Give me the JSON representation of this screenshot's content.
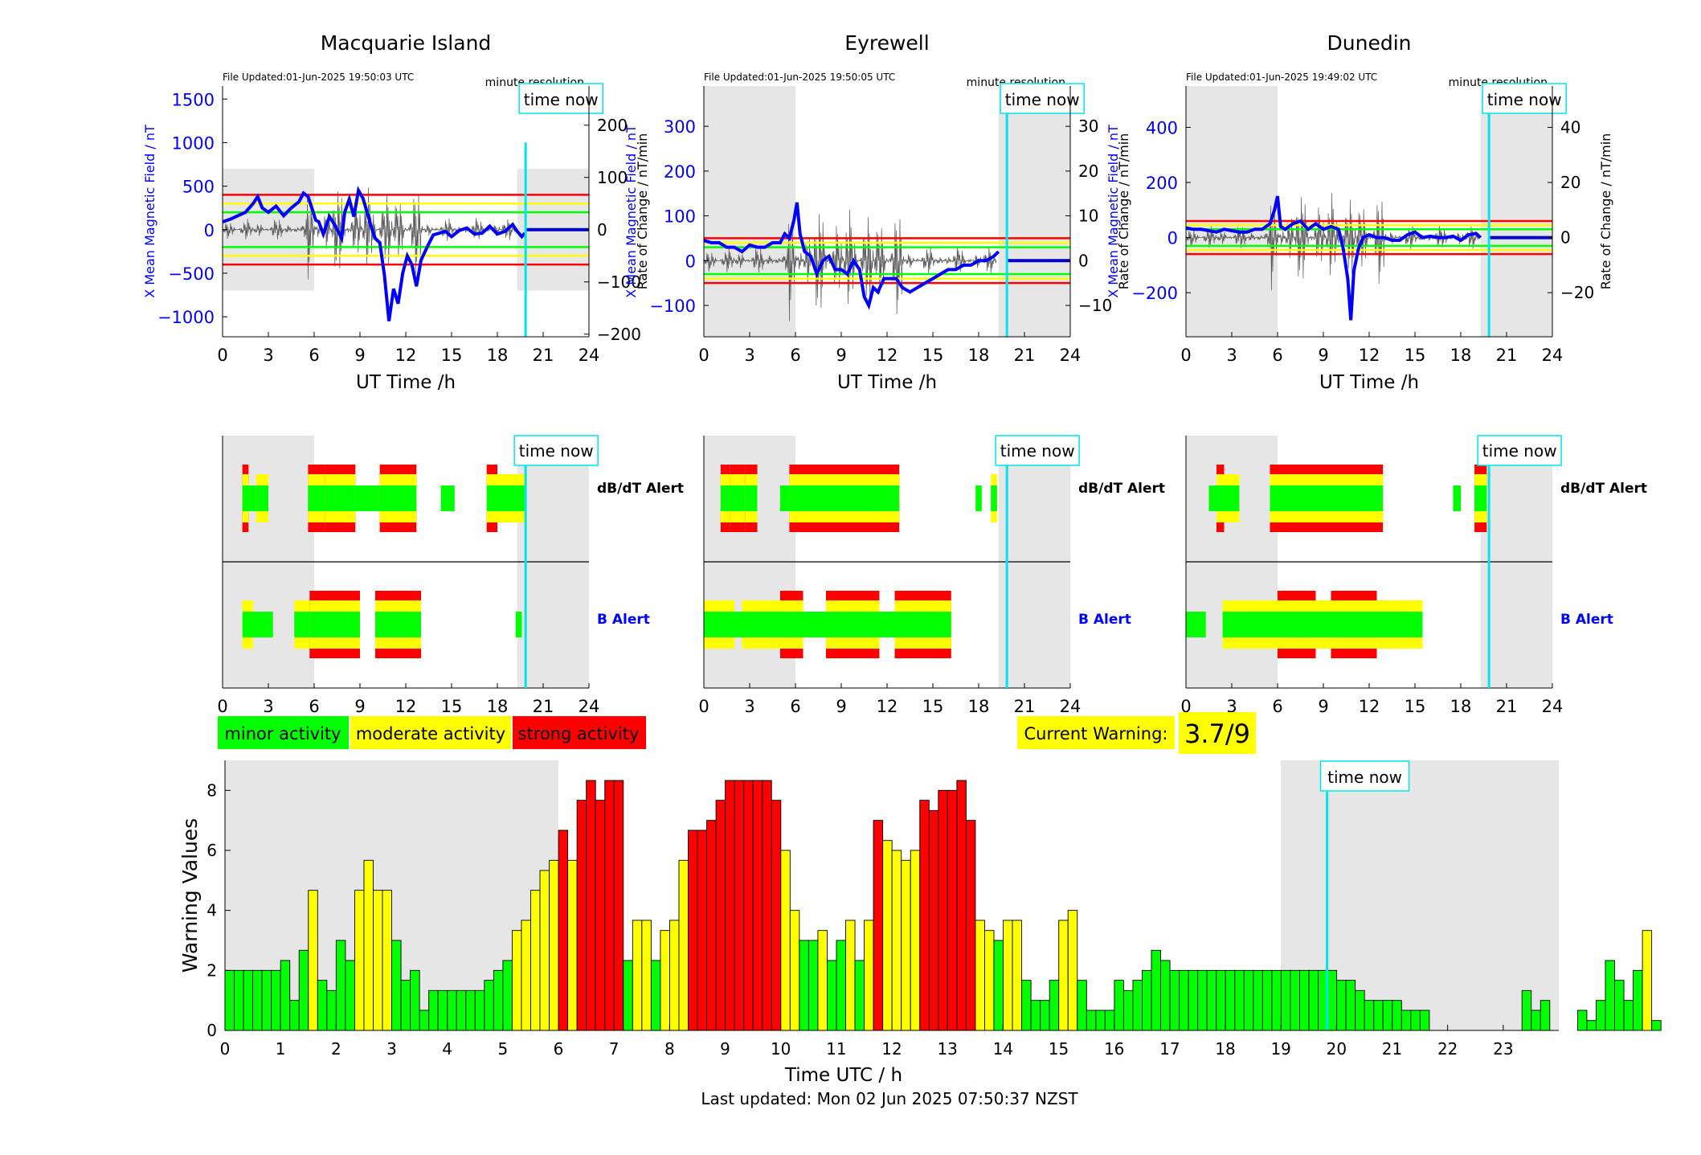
{
  "stations": [
    {
      "name": "Macquarie Island",
      "file_updated": "File Updated:01-Jun-2025 19:50:03 UTC",
      "resolution": "minute resolution",
      "ylabel_left": "X Mean Magnetic Field / nT",
      "ylabel_right": "Rate of Change / nT/min",
      "yticks_left": [
        -1000,
        -500,
        0,
        500,
        1000,
        1500
      ],
      "ylim_left": [
        -1230,
        1650
      ],
      "yticks_right": [
        -200,
        -100,
        0,
        100,
        200
      ],
      "ylim_right": [
        -205,
        275
      ],
      "x_left_curve": [
        0,
        0.5,
        1,
        1.5,
        2,
        2.3,
        2.6,
        3,
        3.5,
        4,
        4.5,
        5,
        5.3,
        5.6,
        5.9,
        6.1,
        6.3,
        6.6,
        7,
        7.4,
        7.8,
        8,
        8.3,
        8.6,
        8.9,
        9.2,
        9.5,
        9.8,
        10,
        10.3,
        10.6,
        10.9,
        11.2,
        11.5,
        11.8,
        12.1,
        12.4,
        12.7,
        13,
        13.4,
        13.8,
        14.2,
        14.6,
        15,
        15.5,
        16,
        16.5,
        17,
        17.5,
        18,
        18.5,
        19,
        19.3,
        19.6,
        19.8
      ],
      "y_left_curve": [
        90,
        120,
        160,
        200,
        300,
        380,
        250,
        200,
        270,
        160,
        250,
        320,
        420,
        380,
        220,
        110,
        90,
        -50,
        150,
        40,
        -100,
        200,
        350,
        150,
        450,
        360,
        180,
        0,
        -100,
        -150,
        -520,
        -1050,
        -680,
        -850,
        -500,
        -300,
        -400,
        -650,
        -350,
        -200,
        -60,
        -40,
        -20,
        -80,
        -10,
        20,
        -50,
        -40,
        40,
        -50,
        -20,
        60,
        -20,
        -80,
        -40
      ],
      "thresholds": [
        {
          "color": "#ff0000",
          "value": 400
        },
        {
          "color": "#ffff00",
          "value": 300
        },
        {
          "color": "#00ff00",
          "value": 200
        }
      ],
      "shade": [
        [
          0,
          6
        ],
        [
          19.3,
          24
        ]
      ],
      "time_now": 19.85,
      "alert_title_dbdt": "dB/dT Alert",
      "alert_title_b": "B Alert",
      "dbdt_blocks": [
        [
          1.3,
          1.7,
          3
        ],
        [
          1.7,
          2.2,
          1
        ],
        [
          2.2,
          3,
          2
        ],
        [
          5.6,
          6.7,
          3
        ],
        [
          6.7,
          8.7,
          3
        ],
        [
          8.7,
          10.3,
          1
        ],
        [
          10.3,
          12.7,
          3
        ],
        [
          14.3,
          15.2,
          1
        ],
        [
          17.3,
          18,
          3
        ],
        [
          18,
          19.8,
          2
        ]
      ],
      "b_blocks": [
        [
          1.3,
          2,
          2
        ],
        [
          2,
          3.3,
          1
        ],
        [
          4.7,
          5.7,
          2
        ],
        [
          5.7,
          7,
          3
        ],
        [
          7,
          9,
          3
        ],
        [
          10,
          13,
          3
        ],
        [
          19.2,
          19.6,
          1
        ]
      ]
    },
    {
      "name": "Eyrewell",
      "file_updated": "File Updated:01-Jun-2025 19:50:05 UTC",
      "resolution": "minute resolution",
      "ylabel_left": "X Mean Magnetic Field / nT",
      "ylabel_right": "Rate of Change / nT/min",
      "yticks_left": [
        -100,
        0,
        100,
        200,
        300
      ],
      "ylim_left": [
        -170,
        390
      ],
      "yticks_right": [
        -10,
        0,
        10,
        20,
        30
      ],
      "ylim_right": [
        -17,
        39
      ],
      "x_left_curve": [
        0,
        0.5,
        1,
        1.5,
        2,
        2.5,
        3,
        3.5,
        4,
        4.5,
        5,
        5.3,
        5.6,
        5.9,
        6.1,
        6.3,
        6.6,
        7,
        7.4,
        7.8,
        8.2,
        8.6,
        9,
        9.4,
        9.8,
        10.2,
        10.5,
        10.8,
        11.1,
        11.4,
        11.8,
        12.2,
        12.6,
        13,
        13.5,
        14,
        14.5,
        15,
        15.5,
        16,
        16.5,
        17,
        17.5,
        18,
        18.5,
        19,
        19.3
      ],
      "y_left_curve": [
        45,
        40,
        40,
        30,
        30,
        20,
        35,
        30,
        30,
        40,
        40,
        60,
        50,
        90,
        130,
        60,
        20,
        10,
        -30,
        0,
        10,
        -20,
        -20,
        -30,
        0,
        -20,
        -80,
        -100,
        -60,
        -70,
        -40,
        -40,
        -40,
        -60,
        -70,
        -60,
        -50,
        -40,
        -30,
        -20,
        -20,
        -10,
        -10,
        0,
        0,
        10,
        20
      ],
      "thresholds": [
        {
          "color": "#ff0000",
          "value": 50
        },
        {
          "color": "#ffff00",
          "value": 40
        },
        {
          "color": "#00ff00",
          "value": 30
        }
      ],
      "shade": [
        [
          0,
          6
        ],
        [
          19.3,
          24
        ]
      ],
      "time_now": 19.85,
      "alert_title_dbdt": "dB/dT Alert",
      "alert_title_b": "B Alert",
      "dbdt_blocks": [
        [
          1.1,
          1.7,
          3
        ],
        [
          1.7,
          2.7,
          3
        ],
        [
          2.7,
          3.5,
          3
        ],
        [
          5,
          5.6,
          1
        ],
        [
          5.6,
          8,
          3
        ],
        [
          8,
          12.8,
          3
        ],
        [
          17.8,
          18.2,
          1
        ],
        [
          18.8,
          19.2,
          2
        ]
      ],
      "b_blocks": [
        [
          0,
          2,
          2
        ],
        [
          2,
          2.5,
          1
        ],
        [
          2.5,
          5.6,
          2
        ],
        [
          5,
          6.5,
          3
        ],
        [
          6.5,
          8,
          1
        ],
        [
          8,
          11.5,
          3
        ],
        [
          11.5,
          12.5,
          1
        ],
        [
          12.5,
          16.2,
          3
        ]
      ]
    },
    {
      "name": "Dunedin",
      "file_updated": "File Updated:01-Jun-2025 19:49:02 UTC",
      "resolution": "minute resolution",
      "ylabel_left": "X Mean Magnetic Field / nT",
      "ylabel_right": "Rate of Change / nT/min",
      "yticks_left": [
        -200,
        0,
        200,
        400
      ],
      "ylim_left": [
        -360,
        550
      ],
      "yticks_right": [
        -20,
        0,
        20,
        40
      ],
      "ylim_right": [
        -36,
        55
      ],
      "x_left_curve": [
        0,
        0.5,
        1,
        1.5,
        2,
        2.5,
        3,
        3.5,
        4,
        4.5,
        5,
        5.5,
        5.8,
        6,
        6.2,
        6.5,
        7,
        7.5,
        8,
        8.5,
        9,
        9.5,
        10,
        10.3,
        10.6,
        10.8,
        11,
        11.3,
        11.6,
        12,
        12.5,
        13,
        13.5,
        14,
        14.5,
        15,
        15.5,
        16,
        16.5,
        17,
        17.5,
        18,
        18.5,
        19,
        19.3
      ],
      "y_left_curve": [
        35,
        30,
        30,
        25,
        20,
        30,
        25,
        20,
        20,
        30,
        30,
        50,
        100,
        150,
        40,
        30,
        50,
        60,
        30,
        50,
        30,
        40,
        30,
        -40,
        -150,
        -300,
        -120,
        -40,
        0,
        10,
        0,
        0,
        -10,
        -10,
        10,
        20,
        0,
        5,
        0,
        0,
        5,
        -10,
        10,
        15,
        0
      ],
      "thresholds": [
        {
          "color": "#ff0000",
          "value": 60
        },
        {
          "color": "#ffff00",
          "value": 45
        },
        {
          "color": "#00ff00",
          "value": 30
        }
      ],
      "shade": [
        [
          0,
          6
        ],
        [
          19.3,
          24
        ]
      ],
      "time_now": 19.85,
      "alert_title_dbdt": "dB/dT Alert",
      "alert_title_b": "B Alert",
      "dbdt_blocks": [
        [
          1.5,
          2,
          1
        ],
        [
          2,
          2.5,
          3
        ],
        [
          2.5,
          3.5,
          2
        ],
        [
          5.5,
          7.5,
          3
        ],
        [
          7.5,
          10,
          3
        ],
        [
          10,
          12.9,
          3
        ],
        [
          17.5,
          18,
          1
        ],
        [
          18.9,
          19.7,
          3
        ]
      ],
      "b_blocks": [
        [
          0,
          1.3,
          1
        ],
        [
          2.4,
          6,
          2
        ],
        [
          6,
          7,
          3
        ],
        [
          7,
          8.5,
          3
        ],
        [
          8.5,
          9.5,
          2
        ],
        [
          9.5,
          11,
          3
        ],
        [
          11,
          12.5,
          3
        ],
        [
          12.5,
          15.5,
          2
        ]
      ]
    }
  ],
  "panel_labels": {
    "time_now": "time now",
    "xlabel": "UT Time /h",
    "xticks": [
      0,
      3,
      6,
      9,
      12,
      15,
      18,
      21,
      24
    ]
  },
  "legend": {
    "minor": "minor activity",
    "moderate": "moderate activity",
    "strong": "strong activity",
    "minor_color": "#00ff00",
    "moderate_color": "#ffff00",
    "strong_color": "#ff0000"
  },
  "current_warning": {
    "label": "Current Warning:",
    "value": "3.7/9"
  },
  "chart_data": {
    "type": "bar",
    "xlabel": "Time UTC / h",
    "ylabel": "Warning Values",
    "xlim": [
      0,
      24
    ],
    "ylim": [
      0,
      9
    ],
    "xticks": [
      0,
      1,
      2,
      3,
      4,
      5,
      6,
      7,
      8,
      9,
      10,
      11,
      12,
      13,
      14,
      15,
      16,
      17,
      18,
      19,
      20,
      21,
      22,
      23
    ],
    "yticks": [
      0,
      2,
      4,
      6,
      8
    ],
    "bin_hours": 0.1667,
    "shade": [
      [
        0,
        6
      ],
      [
        19,
        24
      ]
    ],
    "time_now": 19.83,
    "time_now_label": "time now",
    "values": [
      2,
      2,
      2,
      2,
      2,
      2,
      2.33,
      1,
      2.67,
      4.67,
      1.67,
      1.33,
      3,
      2.33,
      4.67,
      5.67,
      4.67,
      4.67,
      3,
      1.67,
      2,
      0.67,
      1.33,
      1.33,
      1.33,
      1.33,
      1.33,
      1.33,
      1.67,
      2,
      2.33,
      3.33,
      3.67,
      4.67,
      5.33,
      5.67,
      6.67,
      5.67,
      7.67,
      8.33,
      7.67,
      8.33,
      8.33,
      2.33,
      3.67,
      3.67,
      2.33,
      3.33,
      3.67,
      5.67,
      6.67,
      6.67,
      7,
      7.67,
      8.33,
      8.33,
      8.33,
      8.33,
      8.33,
      7.67,
      6,
      4,
      3,
      3,
      3.33,
      2.33,
      3,
      3.67,
      2.33,
      3.67,
      7,
      6.33,
      6,
      5.67,
      6,
      7.67,
      7.33,
      8,
      8,
      8.33,
      7,
      3.67,
      3.33,
      3,
      3.67,
      3.67,
      1.67,
      1,
      1,
      1.67,
      3.67,
      4,
      1.67,
      0.67,
      0.67,
      0.67,
      1.67,
      1.33,
      1.67,
      2,
      2.67,
      2.33,
      2,
      2,
      2,
      2,
      2,
      2,
      2,
      2,
      2,
      2,
      2,
      2,
      2,
      2,
      2,
      2,
      2,
      2,
      1.67,
      1.67,
      1.33,
      1,
      1,
      1,
      1,
      0.67,
      0.67,
      0.67,
      0,
      0,
      0,
      0,
      0,
      0,
      0,
      0,
      0,
      0,
      1.33,
      0.67,
      1,
      0,
      0,
      0,
      0.67,
      0.33,
      1,
      2.33,
      1.67,
      1,
      2,
      3.33,
      0.33
    ],
    "colors_by_level": {
      "minor": "#00ff00",
      "moderate": "#ffff00",
      "strong": "#ff0000"
    },
    "level_thresholds": {
      "moderate": 3.33,
      "strong": 6.67
    },
    "footer": "Last updated: Mon 02 Jun 2025 07:50:37 NZST"
  }
}
